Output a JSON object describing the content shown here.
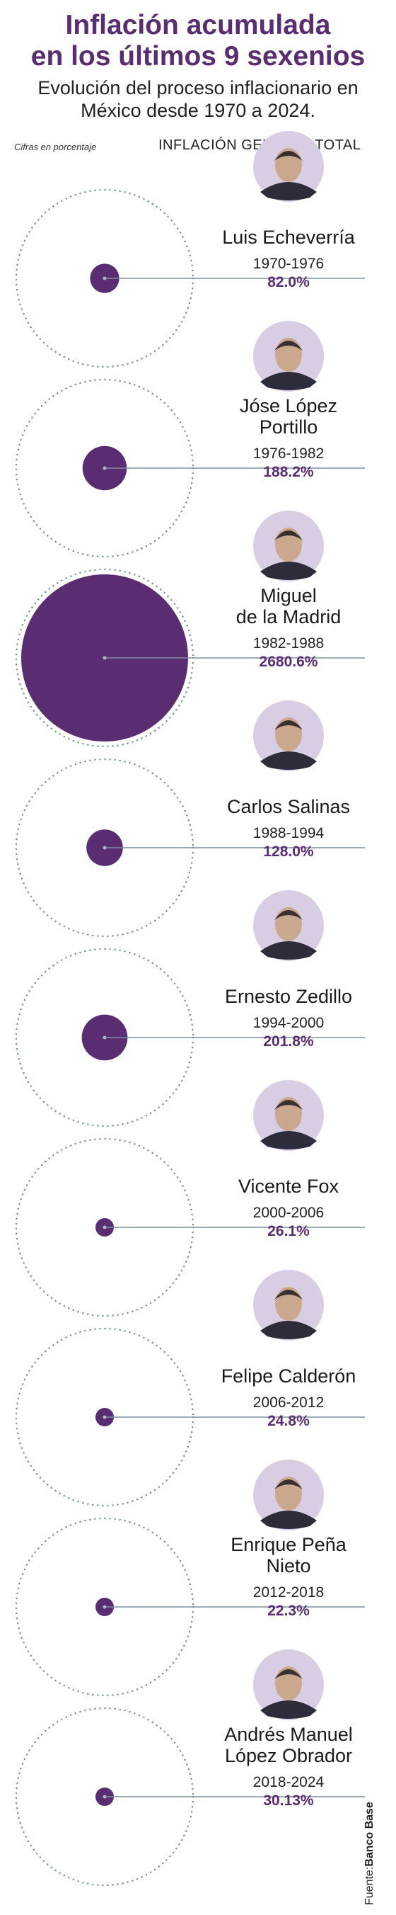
{
  "header": {
    "title_line1": "Inflación acumulada",
    "title_line2": "en los últimos 9 sexenios",
    "subtitle_line1": "Evolución del proceso inflacionario en",
    "subtitle_line2": "México desde 1970 a 2024.",
    "note": "Cifras en porcentaje",
    "column_header": "INFLACIÓN GENERAL TOTAL"
  },
  "source": {
    "prefix": "Fuente:",
    "name": "Banco Base"
  },
  "colors": {
    "accent": "#5a2d73",
    "line": "#7d8fa3",
    "ring": "#6f8f92"
  },
  "chart_data": {
    "type": "bubble",
    "title": "Inflación acumulada en los últimos 9 sexenios",
    "subtitle": "Evolución del proceso inflacionario en México desde 1970 a 2024.",
    "unit": "Cifras en porcentaje",
    "series_label": "INFLACIÓN GENERAL TOTAL",
    "items": [
      {
        "name_lines": [
          "Luis Echeverría"
        ],
        "period": "1970-1976",
        "value": 82.0,
        "value_label": "82.0%"
      },
      {
        "name_lines": [
          "Jóse López",
          "Portillo"
        ],
        "period": "1976-1982",
        "value": 188.2,
        "value_label": "188.2%"
      },
      {
        "name_lines": [
          "Miguel",
          "de la Madrid"
        ],
        "period": "1982-1988",
        "value": 2680.6,
        "value_label": "2680.6%"
      },
      {
        "name_lines": [
          "Carlos Salinas"
        ],
        "period": "1988-1994",
        "value": 128.0,
        "value_label": "128.0%"
      },
      {
        "name_lines": [
          "Ernesto Zedillo"
        ],
        "period": "1994-2000",
        "value": 201.8,
        "value_label": "201.8%"
      },
      {
        "name_lines": [
          "Vicente Fox"
        ],
        "period": "2000-2006",
        "value": 26.1,
        "value_label": "26.1%"
      },
      {
        "name_lines": [
          "Felipe Calderón"
        ],
        "period": "2006-2012",
        "value": 24.8,
        "value_label": "24.8%"
      },
      {
        "name_lines": [
          "Enrique Peña",
          "Nieto"
        ],
        "period": "2012-2018",
        "value": 22.3,
        "value_label": "22.3%"
      },
      {
        "name_lines": [
          "Andrés Manuel",
          "López Obrador"
        ],
        "period": "2018-2024",
        "value": 30.13,
        "value_label": "30.13%"
      }
    ]
  }
}
